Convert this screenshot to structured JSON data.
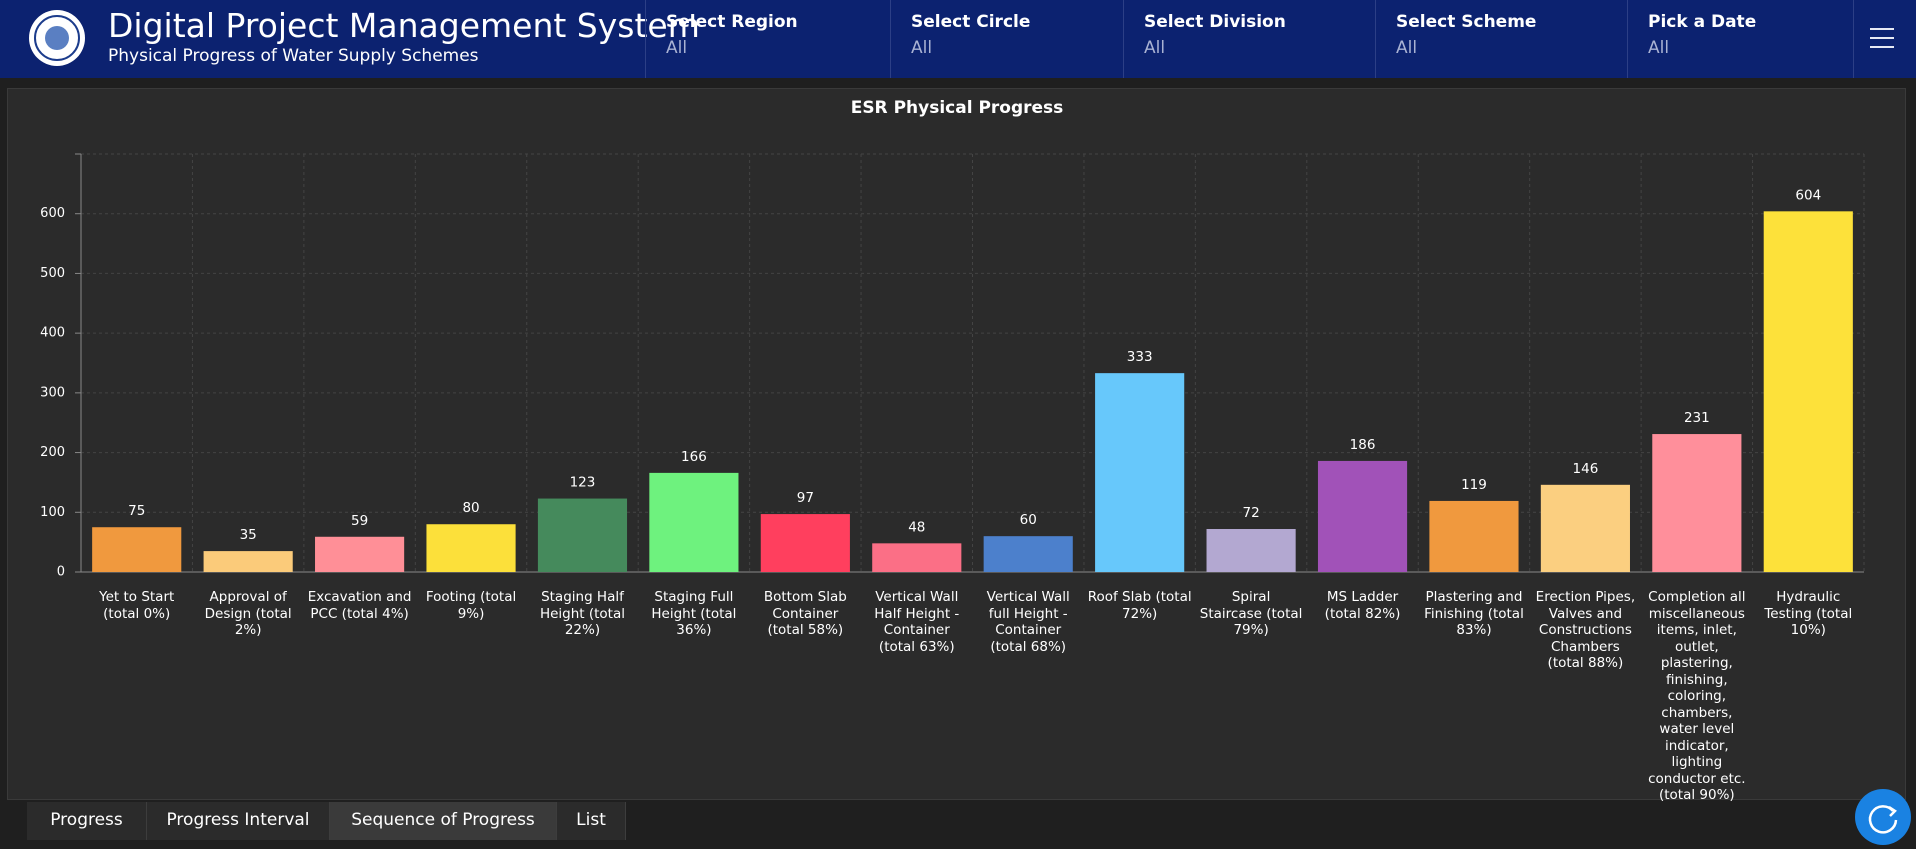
{
  "header": {
    "title": "Digital Project Management System",
    "subtitle": "Physical Progress of Water Supply Schemes"
  },
  "filters": [
    {
      "label": "Select Region",
      "value": "All"
    },
    {
      "label": "Select Circle",
      "value": "All"
    },
    {
      "label": "Select Division",
      "value": "All"
    },
    {
      "label": "Select Scheme",
      "value": "All"
    },
    {
      "label": "Pick a Date",
      "value": "All"
    }
  ],
  "tabs": [
    "Progress",
    "Progress Interval",
    "Sequence of Progress",
    "List"
  ],
  "active_tab": 2,
  "chart_data": {
    "type": "bar",
    "title": "ESR Physical Progress",
    "categories": [
      "Yet to Start (total 0%)",
      "Approval of Design (total 2%)",
      "Excavation and PCC (total 4%)",
      "Footing (total 9%)",
      "Staging Half Height (total 22%)",
      "Staging Full Height (total 36%)",
      "Bottom Slab Container (total 58%)",
      "Vertical Wall Half Height -Container (total 63%)",
      "Vertical Wall full Height -Container (total 68%)",
      "Roof Slab (total 72%)",
      "Spiral Staircase (total 79%)",
      "MS Ladder (total 82%)",
      "Plastering and Finishing (total 83%)",
      "Erection Pipes, Valves and Constructions Chambers (total 88%)",
      "Completion all miscellaneous items, inlet, outlet, plastering, finishing, coloring, chambers, water level indicator, lighting conductor etc. (total 90%)",
      "Hydraulic Testing (total 10%)"
    ],
    "values": [
      75,
      35,
      59,
      80,
      123,
      166,
      97,
      48,
      60,
      333,
      72,
      186,
      119,
      146,
      231,
      604
    ],
    "colors": [
      "#f0993e",
      "#fbcb7a",
      "#ff8f97",
      "#fce03a",
      "#458a5c",
      "#6ef27e",
      "#ff3f5e",
      "#fb6f86",
      "#4c80cc",
      "#67c8fb",
      "#b3a8d1",
      "#a152b8",
      "#f0993e",
      "#fbcf80",
      "#ff8f9b",
      "#fde13a"
    ],
    "ylim": [
      0,
      700
    ],
    "yticks": [
      0,
      100,
      200,
      300,
      400,
      500,
      600
    ],
    "grid": true
  }
}
